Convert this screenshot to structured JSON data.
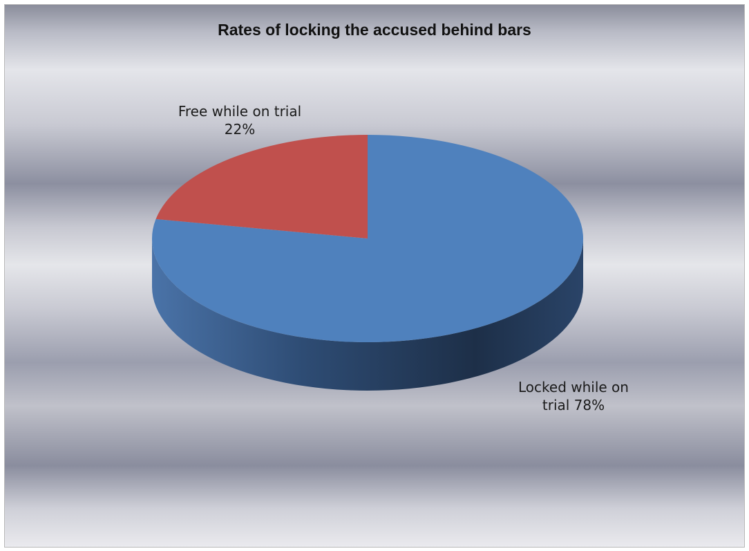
{
  "chart_data": {
    "type": "pie",
    "title": "Rates of locking the accused behind bars",
    "slices": [
      {
        "label": "Locked while on trial",
        "value": 78,
        "display_lines": [
          "Locked while on",
          "trial 78%"
        ],
        "color": "#4f81bd",
        "side_color": "#1f3553"
      },
      {
        "label": "Free while on trial",
        "value": 22,
        "display_lines": [
          "Free while on trial",
          "22%"
        ],
        "color": "#c0504d",
        "side_color": "#7a2f2d"
      }
    ],
    "style": "3d"
  }
}
